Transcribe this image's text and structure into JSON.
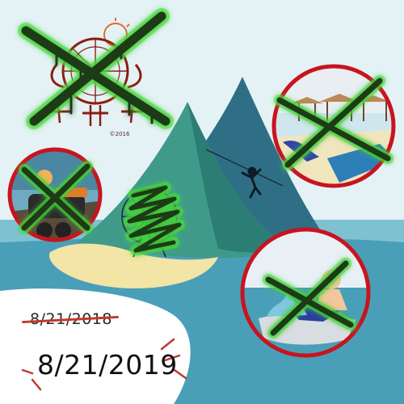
{
  "scene": {
    "colors": {
      "sky": "#e4f2f6",
      "sea": "#4a9fb8",
      "sea_light": "#7ec2d2",
      "mountain_back": "#2f6f86",
      "mountain_front": "#3f9a8a",
      "sand": "#f2e5a6",
      "circle_border": "#c8141e",
      "cross_green": "#1c3a16",
      "glow_green": "#4be23c",
      "paper": "#ffffff"
    },
    "icons": [
      "ferris-wheel-logo-icon",
      "beach-huts-icon",
      "boat-icon",
      "zipline-icon",
      "ferris-wheel-icon",
      "jetski-icon",
      "green-x-icon",
      "green-scribble-icon"
    ]
  },
  "logo": {
    "copyright": "©2016"
  },
  "dates": {
    "old": "8/21/2018",
    "new": "8/21/2019"
  }
}
